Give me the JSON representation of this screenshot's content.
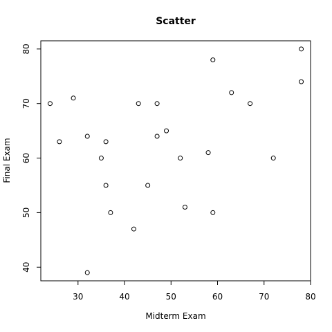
{
  "chart_data": {
    "type": "scatter",
    "title": "Scatter",
    "xlabel": "Midterm Exam",
    "ylabel": "Final Exam",
    "xlim": [
      22,
      80
    ],
    "ylim": [
      37.5,
      81.5
    ],
    "xticks": [
      30,
      40,
      50,
      60,
      70,
      80
    ],
    "yticks": [
      40,
      50,
      60,
      70,
      80
    ],
    "grid": false,
    "points": [
      {
        "x": 24,
        "y": 70
      },
      {
        "x": 26,
        "y": 63
      },
      {
        "x": 29,
        "y": 71
      },
      {
        "x": 32,
        "y": 64
      },
      {
        "x": 32,
        "y": 39
      },
      {
        "x": 35,
        "y": 60
      },
      {
        "x": 36,
        "y": 63
      },
      {
        "x": 36,
        "y": 55
      },
      {
        "x": 37,
        "y": 50
      },
      {
        "x": 42,
        "y": 47
      },
      {
        "x": 43,
        "y": 70
      },
      {
        "x": 45,
        "y": 55
      },
      {
        "x": 47,
        "y": 70
      },
      {
        "x": 47,
        "y": 64
      },
      {
        "x": 49,
        "y": 65
      },
      {
        "x": 52,
        "y": 60
      },
      {
        "x": 53,
        "y": 51
      },
      {
        "x": 58,
        "y": 61
      },
      {
        "x": 59,
        "y": 78
      },
      {
        "x": 59,
        "y": 50
      },
      {
        "x": 63,
        "y": 72
      },
      {
        "x": 67,
        "y": 70
      },
      {
        "x": 72,
        "y": 60
      },
      {
        "x": 78,
        "y": 80
      },
      {
        "x": 78,
        "y": 74
      }
    ]
  }
}
